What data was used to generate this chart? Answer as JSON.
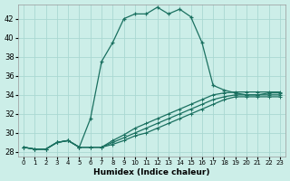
{
  "xlabel": "Humidex (Indice chaleur)",
  "background_color": "#cceee8",
  "grid_color": "#aad8d2",
  "line_color": "#1a7060",
  "xlim": [
    -0.5,
    23.5
  ],
  "ylim": [
    27.5,
    43.5
  ],
  "xticks": [
    0,
    1,
    2,
    3,
    4,
    5,
    6,
    7,
    8,
    9,
    10,
    11,
    12,
    13,
    14,
    15,
    16,
    17,
    18,
    19,
    20,
    21,
    22,
    23
  ],
  "yticks": [
    28,
    30,
    32,
    34,
    36,
    38,
    40,
    42
  ],
  "series": [
    {
      "x": [
        0,
        1,
        2,
        3,
        4,
        5,
        6,
        7,
        8,
        9,
        10,
        11,
        12,
        13,
        14,
        15,
        16,
        17,
        18,
        19,
        20,
        21,
        22,
        23
      ],
      "y": [
        28.5,
        28.3,
        28.3,
        29.0,
        29.2,
        28.5,
        31.5,
        37.5,
        39.5,
        42.0,
        42.5,
        42.5,
        43.2,
        42.5,
        43.0,
        42.2,
        39.5,
        35.0,
        34.5,
        34.2,
        34.0,
        34.0,
        34.2,
        34.2
      ],
      "marker": true
    },
    {
      "x": [
        0,
        1,
        2,
        3,
        4,
        5,
        6,
        7,
        8,
        9,
        10,
        11,
        12,
        13,
        14,
        15,
        16,
        17,
        18,
        19,
        20,
        21,
        22,
        23
      ],
      "y": [
        28.5,
        28.3,
        28.3,
        29.0,
        29.2,
        28.5,
        28.5,
        28.5,
        29.2,
        29.8,
        30.5,
        31.0,
        31.5,
        32.0,
        32.5,
        33.0,
        33.5,
        34.0,
        34.2,
        34.3,
        34.3,
        34.3,
        34.3,
        34.3
      ],
      "marker": false
    },
    {
      "x": [
        0,
        1,
        2,
        3,
        4,
        5,
        6,
        7,
        8,
        9,
        10,
        11,
        12,
        13,
        14,
        15,
        16,
        17,
        18,
        19,
        20,
        21,
        22,
        23
      ],
      "y": [
        28.5,
        28.3,
        28.3,
        29.0,
        29.2,
        28.5,
        28.5,
        28.5,
        29.0,
        29.5,
        30.0,
        30.5,
        31.0,
        31.5,
        32.0,
        32.5,
        33.0,
        33.5,
        33.8,
        34.0,
        34.0,
        34.0,
        34.0,
        34.0
      ],
      "marker": false
    },
    {
      "x": [
        0,
        1,
        2,
        3,
        4,
        5,
        6,
        7,
        8,
        9,
        10,
        11,
        12,
        13,
        14,
        15,
        16,
        17,
        18,
        19,
        20,
        21,
        22,
        23
      ],
      "y": [
        28.5,
        28.3,
        28.3,
        29.0,
        29.2,
        28.5,
        28.5,
        28.5,
        28.8,
        29.2,
        29.7,
        30.0,
        30.5,
        31.0,
        31.5,
        32.0,
        32.5,
        33.0,
        33.5,
        33.8,
        33.8,
        33.8,
        33.8,
        33.8
      ],
      "marker": false
    }
  ]
}
